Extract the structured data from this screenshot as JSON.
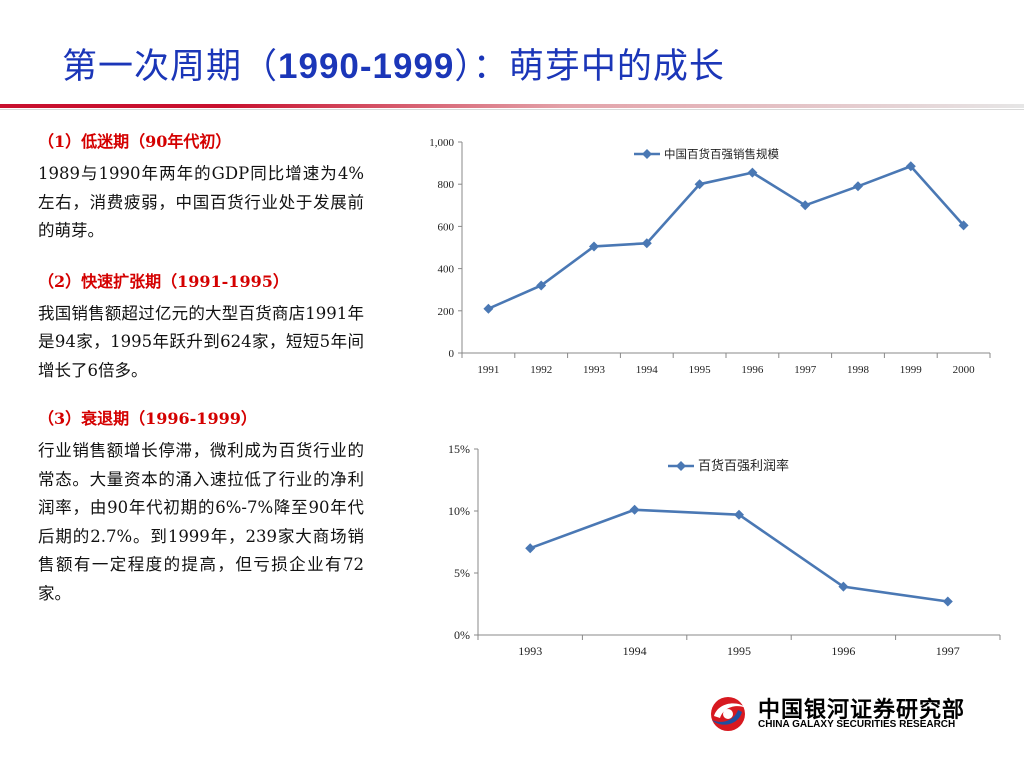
{
  "title": {
    "prefix": "第一次周期（",
    "years": "1990-1999",
    "suffix": "）：萌芽中的成长"
  },
  "sections": [
    {
      "heading": "（1）低迷期（90年代初）",
      "body": "1989与1990年两年的GDP同比增速为4%左右，消费疲弱，中国百货行业处于发展前的萌芽。"
    },
    {
      "heading": "（2）快速扩张期（1991-1995）",
      "body": "我国销售额超过亿元的大型百货商店1991年是94家，1995年跃升到624家，短短5年间增长了6倍多。"
    },
    {
      "heading": "（3）衰退期（1996-1999）",
      "body": "行业销售额增长停滞，微利成为百货行业的常态。大量资本的涌入速拉低了行业的净利润率，由90年代初期的6%-7%降至90年代后期的2.7%。到1999年，239家大商场销售额有一定程度的提高，但亏损企业有72家。"
    }
  ],
  "colors": {
    "title": "#1b36b8",
    "heading": "#d40000",
    "series": "#4a78b4",
    "rule": "#c8102e"
  },
  "logo": {
    "cn": "中国银河证券研究部",
    "en": "CHINA GALAXY SECURITIES RESEARCH"
  },
  "chart_data": [
    {
      "type": "line",
      "x": [
        "1991",
        "1992",
        "1993",
        "1994",
        "1995",
        "1996",
        "1997",
        "1998",
        "1999",
        "2000"
      ],
      "series": [
        {
          "name": "中国百货百强销售规模",
          "values": [
            210,
            320,
            505,
            520,
            800,
            855,
            700,
            790,
            885,
            605
          ]
        }
      ],
      "ylim": [
        0,
        1000
      ],
      "yticks": [
        "0",
        "200",
        "400",
        "600",
        "800",
        "1,000"
      ],
      "legend": "top-center",
      "grid": false
    },
    {
      "type": "line",
      "x": [
        "1993",
        "1994",
        "1995",
        "1996",
        "1997"
      ],
      "series": [
        {
          "name": "百货百强利润率",
          "values": [
            7.0,
            10.1,
            9.7,
            3.9,
            2.7
          ]
        }
      ],
      "ylim": [
        0,
        15
      ],
      "yticks": [
        "0%",
        "5%",
        "10%",
        "15%"
      ],
      "legend": "top-center",
      "grid": false
    }
  ]
}
